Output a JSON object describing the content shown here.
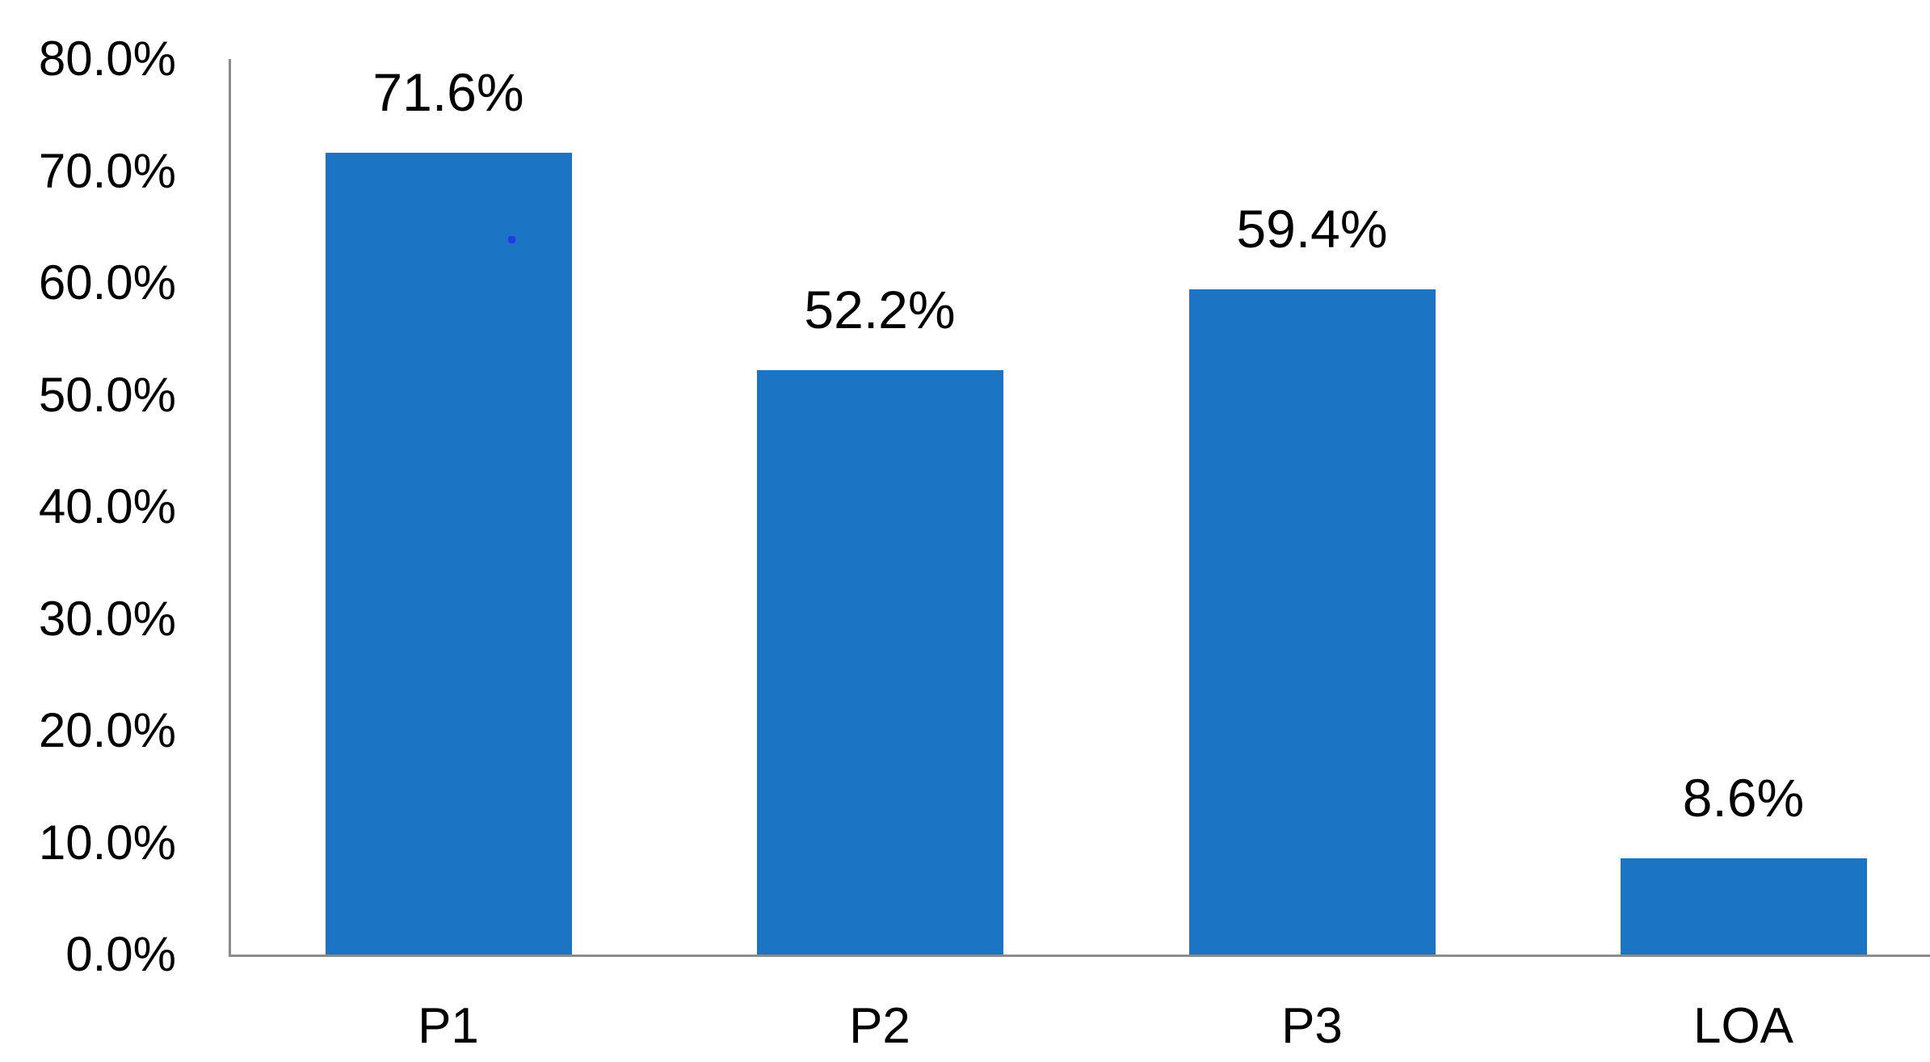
{
  "chart_data": {
    "type": "bar",
    "title": "",
    "xlabel": "",
    "ylabel": "",
    "categories": [
      "P1",
      "P2",
      "P3",
      "LOA"
    ],
    "values": [
      71.6,
      52.2,
      59.4,
      8.6
    ],
    "value_labels": [
      "71.6%",
      "52.2%",
      "59.4%",
      "8.6%"
    ],
    "ylim": [
      0,
      80
    ],
    "ytick_step": 10,
    "ytick_labels": [
      "0.0%",
      "10.0%",
      "20.0%",
      "30.0%",
      "40.0%",
      "50.0%",
      "60.0%",
      "70.0%",
      "80.0%"
    ],
    "grid": false,
    "legend": "none",
    "colors": {
      "bar": "#1b74c4",
      "axis_line": "#8c8c8c",
      "text": "#000000",
      "background": "#ffffff",
      "stray_dot": "#2438e8"
    }
  }
}
